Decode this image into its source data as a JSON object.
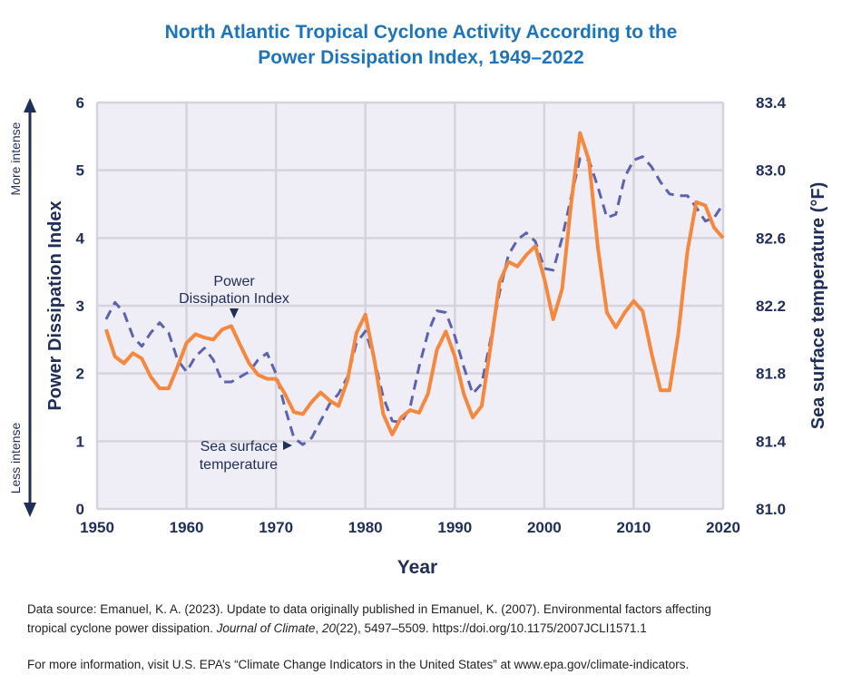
{
  "chart_data": {
    "type": "line",
    "title_line1": "North Atlantic Tropical Cyclone Activity According to the",
    "title_line2": "Power Dissipation Index, 1949–2022",
    "xlabel": "Year",
    "ylabel_left": "Power Dissipation Index",
    "ylabel_right": "Sea surface temperature (°F)",
    "xlim": [
      1950,
      2020
    ],
    "ylim_left": [
      0,
      6
    ],
    "ylim_right": [
      81.0,
      83.4
    ],
    "x_ticks": [
      "1950",
      "1960",
      "1970",
      "1980",
      "1990",
      "2000",
      "2010",
      "2020"
    ],
    "y_left_ticks": [
      "0",
      "1",
      "2",
      "3",
      "4",
      "5",
      "6"
    ],
    "y_right_ticks": [
      "81.0",
      "81.4",
      "81.8",
      "82.2",
      "82.6",
      "83.0",
      "83.4"
    ],
    "arrow_top_label": "More intense",
    "arrow_bottom_label": "Less intense",
    "grid": true,
    "annotations": {
      "pdi_line1": "Power",
      "pdi_line2": "Dissipation Index",
      "sst_line1": "Sea surface",
      "sst_line2": "temperature"
    },
    "x": [
      1951,
      1952,
      1953,
      1954,
      1955,
      1956,
      1957,
      1958,
      1959,
      1960,
      1961,
      1962,
      1963,
      1964,
      1965,
      1966,
      1967,
      1968,
      1969,
      1970,
      1971,
      1972,
      1973,
      1974,
      1975,
      1976,
      1977,
      1978,
      1979,
      1980,
      1981,
      1982,
      1983,
      1984,
      1985,
      1986,
      1987,
      1988,
      1989,
      1990,
      1991,
      1992,
      1993,
      1994,
      1995,
      1996,
      1997,
      1998,
      1999,
      2000,
      2001,
      2002,
      2003,
      2004,
      2005,
      2006,
      2007,
      2008,
      2009,
      2010,
      2011,
      2012,
      2013,
      2014,
      2015,
      2016,
      2017,
      2018,
      2019,
      2020
    ],
    "series": [
      {
        "name": "Power Dissipation Index",
        "axis": "left",
        "color": "#f5883d",
        "style": "solid",
        "values": [
          2.65,
          2.25,
          2.15,
          2.3,
          2.22,
          1.95,
          1.78,
          1.78,
          2.1,
          2.45,
          2.58,
          2.53,
          2.5,
          2.65,
          2.7,
          2.42,
          2.15,
          1.98,
          1.92,
          1.92,
          1.7,
          1.43,
          1.4,
          1.58,
          1.72,
          1.6,
          1.52,
          1.9,
          2.6,
          2.87,
          2.2,
          1.4,
          1.1,
          1.35,
          1.46,
          1.42,
          1.7,
          2.35,
          2.62,
          2.25,
          1.7,
          1.35,
          1.52,
          2.4,
          3.35,
          3.65,
          3.58,
          3.75,
          3.88,
          3.4,
          2.8,
          3.25,
          4.5,
          5.55,
          5.15,
          3.85,
          2.9,
          2.68,
          2.9,
          3.07,
          2.92,
          2.3,
          1.75,
          1.75,
          2.6,
          3.8,
          4.53,
          4.48,
          4.15,
          4.0
        ]
      },
      {
        "name": "Sea surface temperature",
        "axis": "right",
        "color": "#5b62b0",
        "style": "dashed",
        "values": [
          82.12,
          82.22,
          82.16,
          82.02,
          81.96,
          82.04,
          82.1,
          82.04,
          81.88,
          81.81,
          81.9,
          81.95,
          81.88,
          81.75,
          81.75,
          81.78,
          81.81,
          81.88,
          81.92,
          81.8,
          81.6,
          81.42,
          81.38,
          81.42,
          81.52,
          81.62,
          81.68,
          81.78,
          81.98,
          82.05,
          81.88,
          81.66,
          81.52,
          81.51,
          81.6,
          81.84,
          82.04,
          82.17,
          82.16,
          82.02,
          81.84,
          81.68,
          81.74,
          82.0,
          82.28,
          82.5,
          82.59,
          82.63,
          82.58,
          82.42,
          82.41,
          82.6,
          82.84,
          83.07,
          83.06,
          82.9,
          82.72,
          82.74,
          82.96,
          83.06,
          83.08,
          83.02,
          82.93,
          82.86,
          82.85,
          82.85,
          82.78,
          82.7,
          82.72,
          82.8
        ]
      }
    ]
  },
  "footer": {
    "source_line1": "Data source: Emanuel, K. A. (2023). Update to data originally published in Emanuel, K. (2007). Environmental factors affecting",
    "source_line2_a": "tropical cyclone power dissipation. ",
    "source_line2_journal": "Journal of Climate",
    "source_line2_b": ", ",
    "source_line2_vol": "20",
    "source_line2_c": "(22), 5497–5509. https://doi.org/10.1175/2007JCLI1571.1",
    "more_info": "For more information, visit U.S. EPA’s “Climate Change Indicators in the United States” at www.epa.gov/climate-indicators."
  }
}
